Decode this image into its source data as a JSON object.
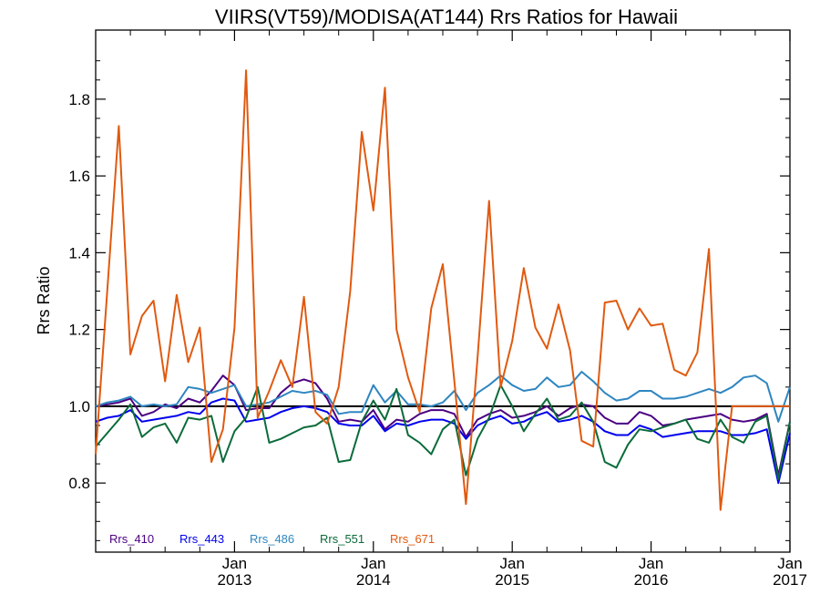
{
  "chart_data": {
    "type": "line",
    "title": "VIIRS(VT59)/MODISA(AT144)  Rrs Ratios for Hawaii",
    "xlabel": "",
    "ylabel": "Rrs Ratio",
    "xlim": [
      "2012-01",
      "2017-01"
    ],
    "ylim": [
      0.62,
      1.98
    ],
    "yticks": [
      0.8,
      1.0,
      1.2,
      1.4,
      1.6,
      1.8
    ],
    "ytick_labels": [
      "0.8",
      "1.0",
      "1.2",
      "1.4",
      "1.6",
      "1.8"
    ],
    "xticks": [
      {
        "month": "2013-01",
        "line1": "Jan",
        "line2": "2013"
      },
      {
        "month": "2014-01",
        "line1": "Jan",
        "line2": "2014"
      },
      {
        "month": "2015-01",
        "line1": "Jan",
        "line2": "2015"
      },
      {
        "month": "2016-01",
        "line1": "Jan",
        "line2": "2016"
      },
      {
        "month": "2017-01",
        "line1": "Jan",
        "line2": "2017"
      }
    ],
    "reference_line": 1.0,
    "legend_position": "bottom-left",
    "x": [
      "2012-01",
      "2012-02",
      "2012-03",
      "2012-04",
      "2012-05",
      "2012-06",
      "2012-07",
      "2012-08",
      "2012-09",
      "2012-10",
      "2012-11",
      "2012-12",
      "2013-01",
      "2013-02",
      "2013-03",
      "2013-04",
      "2013-05",
      "2013-06",
      "2013-07",
      "2013-08",
      "2013-09",
      "2013-10",
      "2013-11",
      "2013-12",
      "2014-01",
      "2014-02",
      "2014-03",
      "2014-04",
      "2014-05",
      "2014-06",
      "2014-07",
      "2014-08",
      "2014-09",
      "2014-10",
      "2014-11",
      "2014-12",
      "2015-01",
      "2015-02",
      "2015-03",
      "2015-04",
      "2015-05",
      "2015-06",
      "2015-07",
      "2015-08",
      "2015-09",
      "2015-10",
      "2015-11",
      "2015-12",
      "2016-01",
      "2016-02",
      "2016-03",
      "2016-04",
      "2016-05",
      "2016-06",
      "2016-07",
      "2016-08",
      "2016-09",
      "2016-10",
      "2016-11",
      "2016-12",
      "2017-01"
    ],
    "series": [
      {
        "name": "Rrs_410",
        "color": "#4b0082",
        "values": [
          1.0,
          1.005,
          1.01,
          1.02,
          0.975,
          0.985,
          1.005,
          0.995,
          1.02,
          1.01,
          1.04,
          1.08,
          1.055,
          0.99,
          0.995,
          0.995,
          1.035,
          1.06,
          1.07,
          1.06,
          1.02,
          0.96,
          0.965,
          0.96,
          0.99,
          0.94,
          0.965,
          0.96,
          0.98,
          0.99,
          0.99,
          0.98,
          0.92,
          0.965,
          0.98,
          0.99,
          0.97,
          0.975,
          0.985,
          1.0,
          0.975,
          0.995,
          1.005,
          1.0,
          0.97,
          0.955,
          0.955,
          0.985,
          0.975,
          0.95,
          0.955,
          0.965,
          0.97,
          0.975,
          0.98,
          0.965,
          0.96,
          0.965,
          0.98,
          0.82,
          0.96
        ]
      },
      {
        "name": "Rrs_443",
        "color": "#0000ee",
        "values": [
          0.96,
          0.97,
          0.975,
          0.99,
          0.96,
          0.965,
          0.97,
          0.975,
          0.985,
          0.98,
          1.01,
          1.02,
          1.015,
          0.96,
          0.965,
          0.97,
          0.985,
          0.995,
          1.0,
          0.995,
          0.985,
          0.955,
          0.95,
          0.95,
          0.975,
          0.935,
          0.955,
          0.95,
          0.96,
          0.965,
          0.965,
          0.955,
          0.915,
          0.95,
          0.965,
          0.975,
          0.955,
          0.96,
          0.975,
          0.985,
          0.96,
          0.965,
          0.975,
          0.96,
          0.935,
          0.925,
          0.925,
          0.95,
          0.94,
          0.92,
          0.925,
          0.93,
          0.935,
          0.935,
          0.935,
          0.925,
          0.925,
          0.93,
          0.94,
          0.8,
          0.93
        ]
      },
      {
        "name": "Rrs_486",
        "color": "#2e86c1",
        "values": [
          1.0,
          1.01,
          1.015,
          1.025,
          1.0,
          1.005,
          1.0,
          1.005,
          1.05,
          1.045,
          1.035,
          1.045,
          1.055,
          1.0,
          1.005,
          1.01,
          1.025,
          1.04,
          1.035,
          1.04,
          1.03,
          0.98,
          0.985,
          0.985,
          1.055,
          1.01,
          1.04,
          1.005,
          1.005,
          1.0,
          1.01,
          1.04,
          0.99,
          1.035,
          1.055,
          1.08,
          1.055,
          1.04,
          1.045,
          1.075,
          1.05,
          1.055,
          1.09,
          1.065,
          1.035,
          1.015,
          1.02,
          1.04,
          1.04,
          1.02,
          1.02,
          1.025,
          1.035,
          1.045,
          1.035,
          1.05,
          1.075,
          1.08,
          1.06,
          0.96,
          1.05
        ]
      },
      {
        "name": "Rrs_551",
        "color": "#0b6b3a",
        "values": [
          0.895,
          0.93,
          0.965,
          1.005,
          0.92,
          0.945,
          0.955,
          0.905,
          0.97,
          0.965,
          0.975,
          0.855,
          0.935,
          0.97,
          1.05,
          0.905,
          0.915,
          0.93,
          0.945,
          0.95,
          0.97,
          0.855,
          0.86,
          0.96,
          1.015,
          0.965,
          1.045,
          0.925,
          0.905,
          0.875,
          0.94,
          0.965,
          0.82,
          0.915,
          0.97,
          1.055,
          1.0,
          0.935,
          0.98,
          1.02,
          0.965,
          0.975,
          1.01,
          0.96,
          0.855,
          0.84,
          0.9,
          0.94,
          0.935,
          0.945,
          0.955,
          0.965,
          0.915,
          0.905,
          0.965,
          0.92,
          0.905,
          0.96,
          0.975,
          0.81,
          0.96
        ]
      },
      {
        "name": "Rrs_671",
        "color": "#e05a10",
        "values": [
          0.875,
          1.3,
          1.73,
          1.135,
          1.235,
          1.275,
          1.065,
          1.29,
          1.115,
          1.205,
          0.855,
          0.94,
          1.205,
          1.875,
          0.97,
          1.04,
          1.12,
          1.05,
          1.285,
          0.985,
          0.955,
          1.05,
          1.3,
          1.715,
          1.51,
          1.83,
          1.2,
          1.075,
          0.985,
          1.255,
          1.37,
          1.065,
          0.745,
          1.125,
          1.535,
          1.05,
          1.17,
          1.36,
          1.205,
          1.15,
          1.265,
          1.145,
          0.91,
          0.895,
          1.27,
          1.275,
          1.2,
          1.255,
          1.21,
          1.215,
          1.095,
          1.08,
          1.14,
          1.41,
          0.73,
          1.0,
          1.0,
          1.0,
          1.0,
          1.0,
          1.0
        ]
      }
    ]
  }
}
